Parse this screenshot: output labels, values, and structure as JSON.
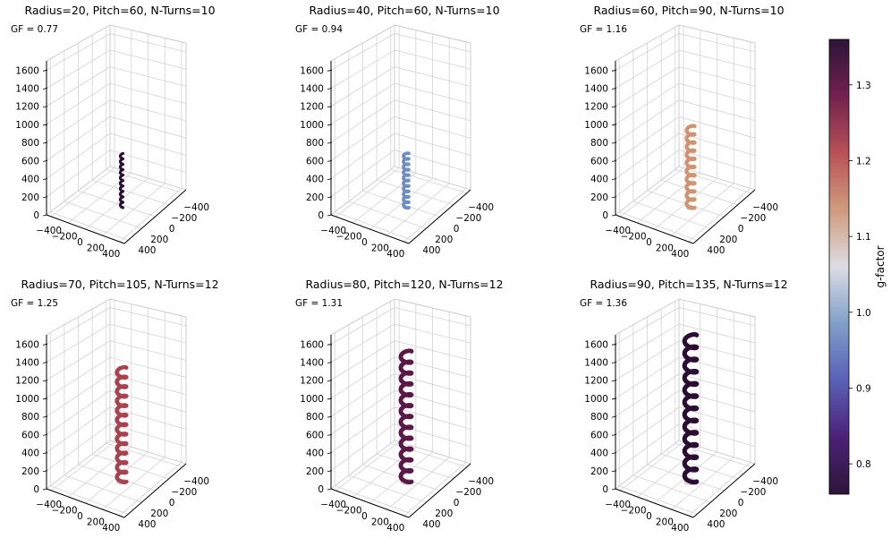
{
  "chart_data": [
    {
      "type": "line3d",
      "title": "Radius=20, Pitch=60, N-Turns=10",
      "gf_label": "GF = 0.77",
      "radius": 20,
      "pitch": 60,
      "turns": 10,
      "gf": 0.77,
      "color": "#2a0f36"
    },
    {
      "type": "line3d",
      "title": "Radius=40, Pitch=60, N-Turns=10",
      "gf_label": "GF = 0.94",
      "radius": 40,
      "pitch": 60,
      "turns": 10,
      "gf": 0.94,
      "color": "#6f8ebf"
    },
    {
      "type": "line3d",
      "title": "Radius=60, Pitch=90, N-Turns=10",
      "gf_label": "GF = 1.16",
      "radius": 60,
      "pitch": 90,
      "turns": 10,
      "gf": 1.16,
      "color": "#d09472"
    },
    {
      "type": "line3d",
      "title": "Radius=70, Pitch=105, N-Turns=12",
      "gf_label": "GF = 1.25",
      "radius": 70,
      "pitch": 105,
      "turns": 12,
      "gf": 1.25,
      "color": "#a8424f"
    },
    {
      "type": "line3d",
      "title": "Radius=80, Pitch=120, N-Turns=12",
      "gf_label": "GF = 1.31",
      "radius": 80,
      "pitch": 120,
      "turns": 12,
      "gf": 1.31,
      "color": "#5a1848"
    },
    {
      "type": "line3d",
      "title": "Radius=90, Pitch=135, N-Turns=12",
      "gf_label": "GF = 1.36",
      "radius": 90,
      "pitch": 135,
      "turns": 12,
      "gf": 1.36,
      "color": "#2b0d33"
    }
  ],
  "axes": {
    "z_ticks": [
      "0",
      "200",
      "400",
      "600",
      "800",
      "1000",
      "1200",
      "1400",
      "1600"
    ],
    "z_range": [
      0,
      1600
    ],
    "x_ticks": [
      "−400",
      "−200",
      "0",
      "200",
      "400"
    ],
    "y_ticks": [
      "−400",
      "−200",
      "0",
      "200",
      "400"
    ]
  },
  "colorbar": {
    "label": "g-factor",
    "ticks": [
      "0.8",
      "0.9",
      "1.0",
      "1.1",
      "1.2",
      "1.3"
    ],
    "tick_values": [
      0.8,
      0.9,
      1.0,
      1.1,
      1.2,
      1.3
    ],
    "range": [
      0.76,
      1.36
    ],
    "colormap": [
      "#2d1538",
      "#4b2178",
      "#5a5fb8",
      "#7e9fc9",
      "#dedde4",
      "#d09a7d",
      "#b95257",
      "#73204f",
      "#2d1538"
    ]
  }
}
